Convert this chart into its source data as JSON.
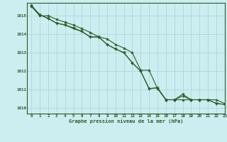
{
  "title": "Graphe pression niveau de la mer (hPa)",
  "background_color": "#cceef0",
  "grid_color": "#aad8dc",
  "line_color": "#2d5a27",
  "xlim": [
    -0.5,
    23
  ],
  "ylim": [
    1009.7,
    1015.7
  ],
  "yticks": [
    1010,
    1011,
    1012,
    1013,
    1014,
    1015
  ],
  "xticks": [
    0,
    1,
    2,
    3,
    4,
    5,
    6,
    7,
    8,
    9,
    10,
    11,
    12,
    13,
    14,
    15,
    16,
    17,
    18,
    19,
    20,
    21,
    22,
    23
  ],
  "series1_x": [
    0,
    1,
    2,
    3,
    4,
    5,
    6,
    7,
    8,
    9,
    10,
    11,
    12,
    13,
    14,
    15,
    16,
    17,
    18,
    19,
    20,
    21,
    22,
    23
  ],
  "series1_y": [
    1015.5,
    1015.0,
    1015.0,
    1014.8,
    1014.65,
    1014.5,
    1014.3,
    1014.1,
    1013.85,
    1013.75,
    1013.45,
    1013.25,
    1013.0,
    1012.05,
    1012.05,
    1011.05,
    1010.45,
    1010.45,
    1010.45,
    1010.45,
    1010.45,
    1010.45,
    1010.45,
    1010.25
  ],
  "series2_x": [
    0,
    1,
    2,
    3,
    4,
    5,
    6,
    7,
    8,
    9,
    10,
    11,
    12,
    13,
    14,
    15,
    16,
    17,
    18,
    19,
    20,
    21,
    22,
    23
  ],
  "series2_y": [
    1015.55,
    1015.05,
    1014.85,
    1014.6,
    1014.5,
    1014.3,
    1014.15,
    1013.85,
    1013.85,
    1013.45,
    1013.2,
    1013.0,
    1012.45,
    1012.0,
    1011.05,
    1011.1,
    1010.45,
    1010.45,
    1010.75,
    1010.45,
    1010.45,
    1010.45,
    1010.25,
    1010.2
  ],
  "series3_x": [
    0,
    1,
    2,
    3,
    4,
    5,
    6,
    7,
    8,
    9,
    10,
    11,
    12,
    13,
    14,
    15,
    16,
    17,
    18,
    19,
    20,
    21,
    22,
    23
  ],
  "series3_y": [
    1015.55,
    1015.05,
    1014.85,
    1014.6,
    1014.5,
    1014.35,
    1014.15,
    1013.85,
    1013.85,
    1013.45,
    1013.2,
    1013.0,
    1012.45,
    1012.0,
    1011.05,
    1011.1,
    1010.45,
    1010.45,
    1010.65,
    1010.45,
    1010.45,
    1010.45,
    1010.25,
    1010.2
  ]
}
